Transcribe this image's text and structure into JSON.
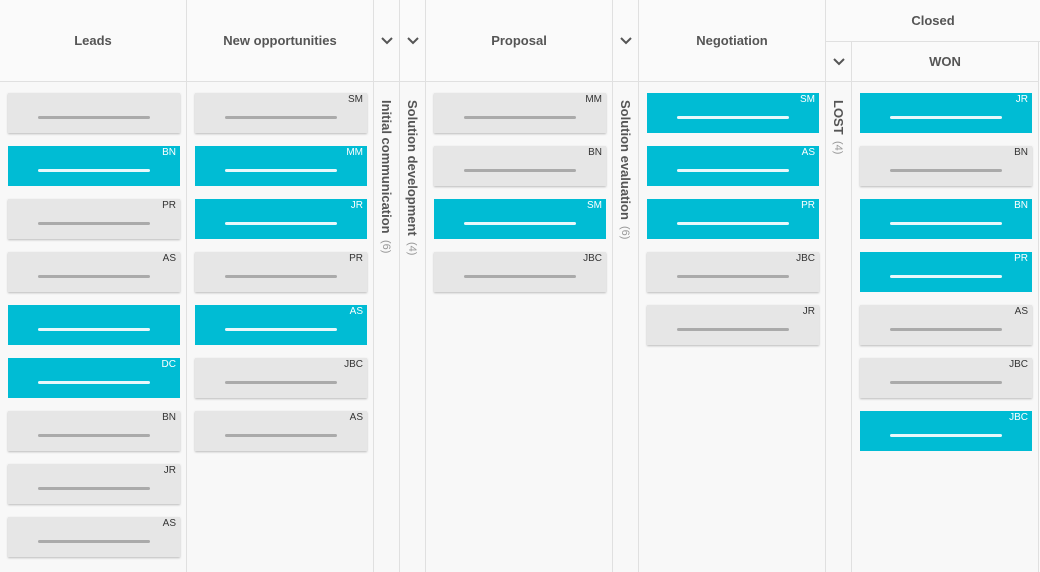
{
  "columns": [
    {
      "title": "Leads",
      "cards": [
        {
          "color": "#e6e6e6"
        },
        {
          "initials": "BN",
          "color": "#00bcd4"
        },
        {
          "initials": "PR",
          "color": "#e6e6e6"
        },
        {
          "initials": "AS",
          "color": "#e6e6e6"
        },
        {
          "color": "#00bcd4"
        },
        {
          "initials": "DC",
          "color": "#00bcd4"
        },
        {
          "initials": "BN",
          "color": "#e6e6e6"
        },
        {
          "initials": "JR",
          "color": "#e6e6e6"
        },
        {
          "initials": "AS",
          "color": "#e6e6e6"
        }
      ]
    },
    {
      "title": "New opportunities",
      "cards": [
        {
          "initials": "SM",
          "color": "#e6e6e6"
        },
        {
          "initials": "MM",
          "color": "#00bcd4"
        },
        {
          "initials": "JR",
          "color": "#00bcd4"
        },
        {
          "initials": "PR",
          "color": "#e6e6e6"
        },
        {
          "initials": "AS",
          "color": "#00bcd4"
        },
        {
          "initials": "JBC",
          "color": "#e6e6e6"
        },
        {
          "initials": "AS",
          "color": "#e6e6e6"
        }
      ]
    },
    {
      "title": "Initial communication",
      "count": "(6)",
      "collapsed": true
    },
    {
      "title": "Solution development",
      "count": "(4)",
      "collapsed": true
    },
    {
      "title": "Proposal",
      "cards": [
        {
          "initials": "MM",
          "color": "#e6e6e6"
        },
        {
          "initials": "BN",
          "color": "#e6e6e6"
        },
        {
          "initials": "SM",
          "color": "#00bcd4"
        },
        {
          "initials": "JBC",
          "color": "#e6e6e6"
        }
      ]
    },
    {
      "title": "Solution evaluation",
      "count": "(6)",
      "collapsed": true
    },
    {
      "title": "Negotiation",
      "cards": [
        {
          "initials": "SM",
          "color": "#00bcd4"
        },
        {
          "initials": "AS",
          "color": "#00bcd4"
        },
        {
          "initials": "PR",
          "color": "#00bcd4"
        },
        {
          "initials": "JBC",
          "color": "#e6e6e6"
        },
        {
          "initials": "JR",
          "color": "#e6e6e6"
        }
      ]
    },
    {
      "title": "Closed",
      "subcolumns": [
        {
          "title": "LOST",
          "count": "(4)",
          "collapsed": true
        },
        {
          "title": "WON",
          "cards": [
            {
              "initials": "JR",
              "color": "#00bcd4"
            },
            {
              "initials": "BN",
              "color": "#e6e6e6"
            },
            {
              "initials": "BN",
              "color": "#00bcd4"
            },
            {
              "initials": "PR",
              "color": "#00bcd4"
            },
            {
              "initials": "AS",
              "color": "#e6e6e6"
            },
            {
              "initials": "JBC",
              "color": "#e6e6e6"
            },
            {
              "initials": "JBC",
              "color": "#00bcd4"
            }
          ]
        }
      ]
    }
  ]
}
